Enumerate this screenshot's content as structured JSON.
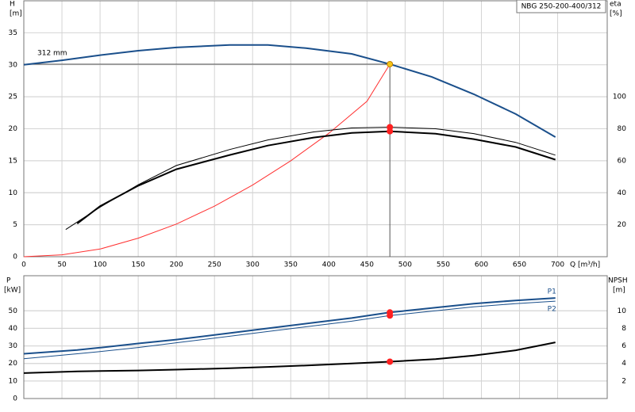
{
  "chart_data": [
    {
      "type": "line",
      "title": "NBG 250-200-400/312",
      "ylabel": "H",
      "yunit": "[m]",
      "y2label": "eta",
      "y2unit": "[%]",
      "xlabel": "Q [m³/h]",
      "annotation": "312 mm",
      "xlim": [
        0,
        765
      ],
      "xticks": [
        0,
        50,
        100,
        150,
        200,
        250,
        300,
        350,
        400,
        450,
        500,
        550,
        600,
        650,
        700
      ],
      "ylim": [
        0,
        40
      ],
      "yticks": [
        0,
        5,
        10,
        15,
        20,
        25,
        30,
        35
      ],
      "y2lim": [
        0,
        160
      ],
      "y2ticks": [
        20,
        40,
        60,
        80,
        100
      ],
      "grid": true,
      "series": [
        {
          "color": "#1a4f8b",
          "line_style": "thick",
          "x": [
            0,
            50,
            100,
            150,
            200,
            270,
            320,
            370,
            430,
            480,
            535,
            590,
            645,
            697
          ],
          "values": [
            30,
            30.7,
            31.5,
            32.2,
            32.7,
            33.1,
            33.1,
            32.6,
            31.7,
            30.1,
            28.1,
            25.4,
            22.3,
            18.7
          ]
        },
        {
          "color": "#ff3030",
          "line_style": "thin",
          "x": [
            0,
            50,
            100,
            150,
            200,
            250,
            300,
            350,
            400,
            450,
            480
          ],
          "values": [
            0,
            0.3,
            1.2,
            2.9,
            5.1,
            7.9,
            11.2,
            15,
            19.3,
            24.3,
            30.1
          ]
        },
        {
          "color": "#000000",
          "line_style": "thin",
          "axis": "y2",
          "x": [
            55,
            100,
            150,
            200,
            270,
            320,
            380,
            430,
            480,
            540,
            590,
            645,
            697
          ],
          "values": [
            17,
            31,
            45,
            57,
            67,
            73,
            78,
            80.5,
            81,
            80,
            77,
            71.5,
            63.5
          ]
        },
        {
          "color": "#000000",
          "line_style": "thick",
          "axis": "y2",
          "x": [
            70,
            100,
            150,
            200,
            270,
            320,
            380,
            430,
            480,
            540,
            590,
            645,
            697
          ],
          "values": [
            20.7,
            31.6,
            44.4,
            54.7,
            63.6,
            69.5,
            74.5,
            77.4,
            78.4,
            76.9,
            73.5,
            68.6,
            60.7
          ]
        }
      ],
      "markers": [
        {
          "x": 480,
          "y": 30.1,
          "color": "#f5c518"
        },
        {
          "x": 480,
          "y": 81,
          "axis": "y2",
          "color": "#ff2020"
        },
        {
          "x": 480,
          "y": 78.4,
          "axis": "y2",
          "color": "#ff2020"
        }
      ]
    },
    {
      "type": "line",
      "ylabel": "P",
      "yunit": "[kW]",
      "y2label": "NPSH",
      "y2unit": "[m]",
      "xlim": [
        0,
        765
      ],
      "ylim": [
        0,
        70
      ],
      "yticks": [
        0,
        10,
        20,
        30,
        40,
        50
      ],
      "y2lim": [
        0,
        14
      ],
      "y2ticks": [
        2,
        4,
        6,
        8,
        10
      ],
      "grid": true,
      "series": [
        {
          "name": "P1",
          "color": "#1a4f8b",
          "line_style": "thick",
          "x": [
            0,
            70,
            100,
            150,
            200,
            270,
            320,
            380,
            430,
            480,
            540,
            590,
            645,
            697
          ],
          "values": [
            25.5,
            27.7,
            29,
            31.4,
            33.6,
            37.3,
            40,
            43.2,
            45.9,
            49.1,
            51.8,
            54.1,
            55.9,
            57.3
          ]
        },
        {
          "name": "P2",
          "color": "#1a4f8b",
          "line_style": "thin",
          "x": [
            0,
            70,
            100,
            150,
            200,
            270,
            320,
            380,
            430,
            480,
            540,
            590,
            645,
            697
          ],
          "values": [
            22.7,
            25.5,
            26.8,
            29.1,
            31.8,
            35.5,
            38.2,
            41.4,
            44.1,
            47.3,
            50,
            52.3,
            54.1,
            55.5
          ]
        },
        {
          "color": "#000000",
          "line_style": "thick",
          "axis": "y2",
          "x": [
            0,
            70,
            150,
            200,
            270,
            320,
            380,
            430,
            480,
            540,
            590,
            645,
            697
          ],
          "values": [
            2.9,
            3.1,
            3.2,
            3.3,
            3.45,
            3.6,
            3.8,
            4,
            4.2,
            4.5,
            4.9,
            5.5,
            6.4
          ]
        }
      ],
      "markers": [
        {
          "x": 480,
          "y": 49.1,
          "color": "#ff2020"
        },
        {
          "x": 480,
          "y": 47.3,
          "color": "#ff2020"
        },
        {
          "x": 480,
          "y": 4.2,
          "axis": "y2",
          "color": "#ff2020"
        }
      ]
    }
  ]
}
